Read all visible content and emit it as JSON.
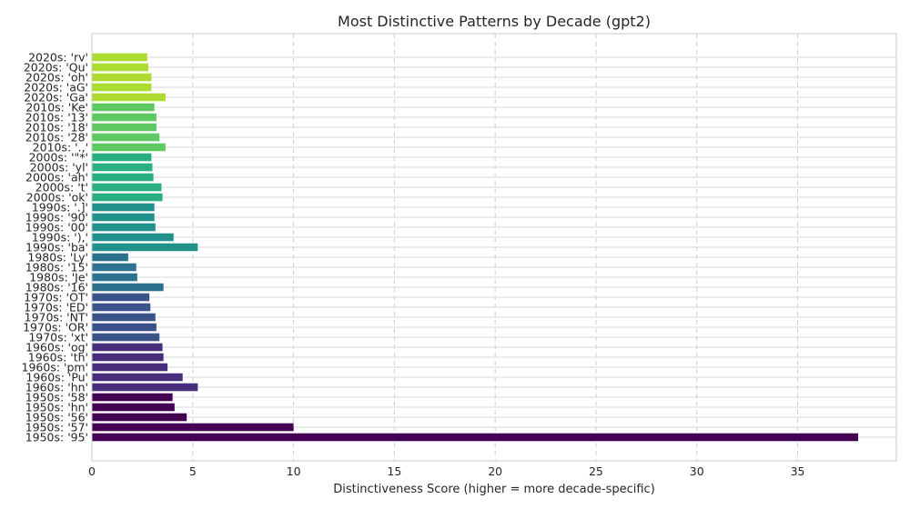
{
  "chart_data": {
    "type": "bar",
    "orientation": "horizontal",
    "title": "Most Distinctive Patterns by Decade (gpt2)",
    "xlabel": "Distinctiveness Score (higher = more decade-specific)",
    "ylabel": "",
    "xlim": [
      0,
      40
    ],
    "xticks": [
      0,
      5,
      10,
      15,
      20,
      25,
      30,
      35
    ],
    "grid": true,
    "categories": [
      "2020s: 'rv'",
      "2020s: 'Qu'",
      "2020s: 'oh'",
      "2020s: 'aG'",
      "2020s: 'Ga'",
      "2010s: 'Ke'",
      "2010s: '13'",
      "2010s: '18'",
      "2010s: '28'",
      "2010s: '.,'",
      "2000s: '\"*'",
      "2000s: 'yl'",
      "2000s: 'ah'",
      "2000s: 't'",
      "2000s: 'ok'",
      "1990s: '.]'",
      "1990s: '90'",
      "1990s: '00'",
      "1990s: '),'",
      "1990s: 'ba'",
      "1980s: 'Ly'",
      "1980s: '15'",
      "1980s: 'Je'",
      "1980s: '16'",
      "1970s: 'OT'",
      "1970s: 'ED'",
      "1970s: 'NT'",
      "1970s: 'OR'",
      "1970s: 'xt'",
      "1960s: 'og'",
      "1960s: 'th'",
      "1960s: 'pm'",
      "1960s: 'Pu'",
      "1960s: 'hn'",
      "1950s: '58'",
      "1950s: 'hn'",
      "1950s: '56'",
      "1950s: '57'",
      "1950s: '95'"
    ],
    "values": [
      2.75,
      2.8,
      2.95,
      2.95,
      3.65,
      3.1,
      3.2,
      3.2,
      3.35,
      3.65,
      2.95,
      3.0,
      3.05,
      3.45,
      3.5,
      3.1,
      3.1,
      3.15,
      4.05,
      5.25,
      1.8,
      2.2,
      2.25,
      3.55,
      2.85,
      2.9,
      3.15,
      3.2,
      3.35,
      3.5,
      3.55,
      3.75,
      4.5,
      5.25,
      4.0,
      4.1,
      4.7,
      10.0,
      38.0
    ],
    "decade_colors": {
      "2020s": "#addc30",
      "2010s": "#5ec962",
      "2000s": "#28ae80",
      "1990s": "#21918c",
      "1980s": "#2c728e",
      "1970s": "#3b528b",
      "1960s": "#472d7b",
      "1950s": "#440154"
    }
  }
}
